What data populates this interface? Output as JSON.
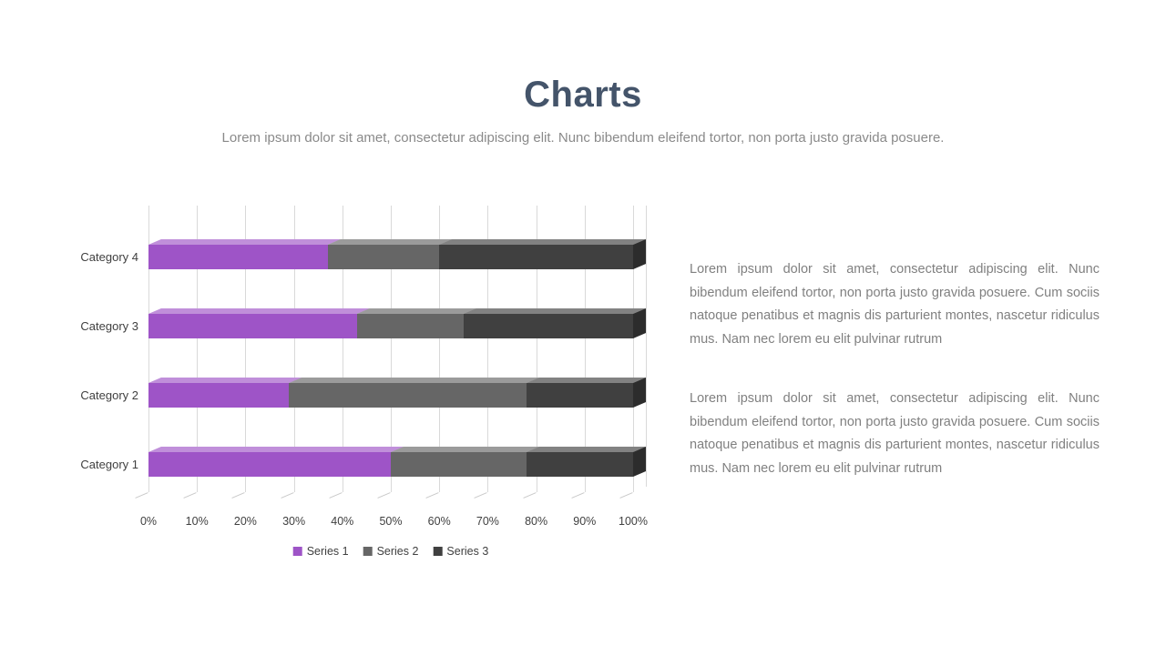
{
  "slide": {
    "title": "Charts",
    "subtitle": "Lorem ipsum dolor sit amet, consectetur adipiscing elit. Nunc bibendum eleifend tortor, non porta justo gravida posuere."
  },
  "chart_data": {
    "type": "bar",
    "orientation": "horizontal",
    "stacked": true,
    "percent_stacked": true,
    "title": "",
    "xlabel": "",
    "ylabel": "",
    "xlim": [
      0,
      100
    ],
    "grid": true,
    "legend_position": "bottom",
    "categories": [
      "Category 4",
      "Category 3",
      "Category 2",
      "Category 1"
    ],
    "series": [
      {
        "name": "Series 1",
        "color": "#9E54C7",
        "values": [
          37,
          43,
          29,
          50
        ]
      },
      {
        "name": "Series 2",
        "color": "#666666",
        "values": [
          23,
          22,
          49,
          28
        ]
      },
      {
        "name": "Series 3",
        "color": "#404040",
        "values": [
          40,
          35,
          22,
          22
        ]
      }
    ],
    "x_ticks": [
      "0%",
      "10%",
      "20%",
      "30%",
      "40%",
      "50%",
      "60%",
      "70%",
      "80%",
      "90%",
      "100%"
    ]
  },
  "body": {
    "paragraph1": "Lorem ipsum dolor sit amet, consectetur adipiscing elit. Nunc bibendum eleifend tortor, non porta justo gravida posuere. Cum sociis natoque penatibus et magnis dis parturient montes, nascetur ridiculus mus. Nam nec lorem eu elit pulvinar rutrum",
    "paragraph2": "Lorem ipsum dolor sit amet, consectetur adipiscing elit. Nunc bibendum eleifend tortor, non porta justo gravida posuere. Cum sociis natoque penatibus et magnis dis parturient montes, nascetur ridiculus mus. Nam nec lorem eu elit pulvinar rutrum"
  },
  "colors": {
    "title": "#44546A",
    "subtitle": "#8A8A8A",
    "body_text": "#808080",
    "gridline": "#D9D9D9",
    "axis_label": "#404040"
  }
}
